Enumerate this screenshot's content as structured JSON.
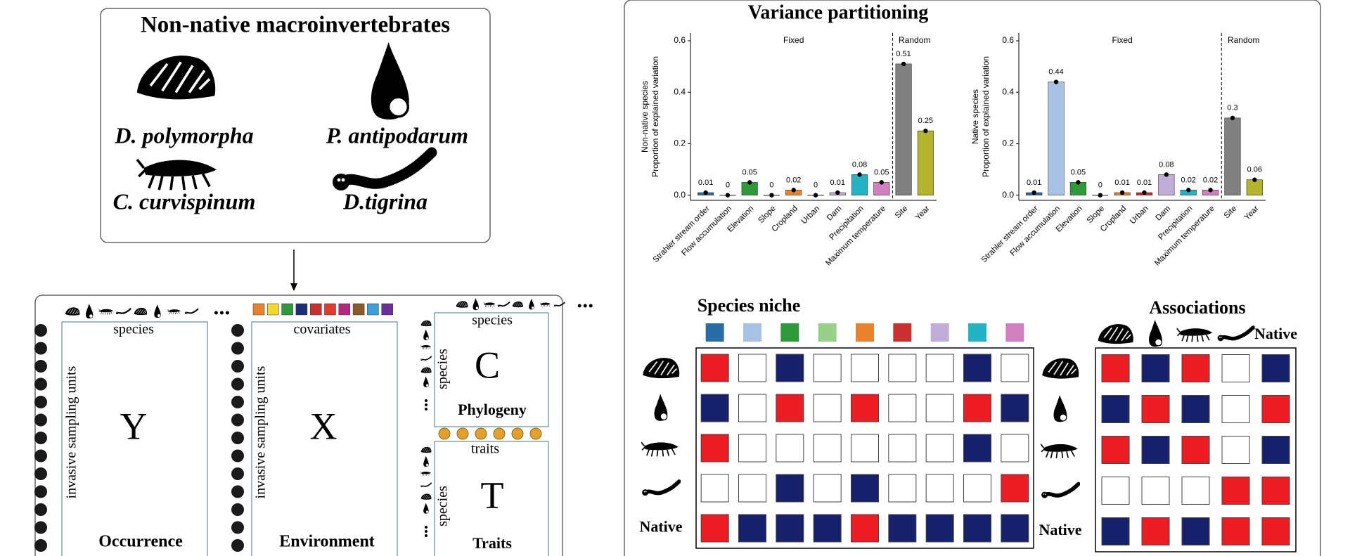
{
  "left_panel": {
    "title": "Non-native macroinvertebrates",
    "species": [
      "D. polymorpha",
      "P. antipodarum",
      "C. curvispinum",
      "D.tigrina"
    ]
  },
  "matrices": {
    "occurrence": {
      "top": "species",
      "side": "invasive sampling units",
      "symbol": "Y",
      "name": "Occurrence"
    },
    "environment": {
      "top": "covariates",
      "side": "invasive sampling units",
      "symbol": "X",
      "name": "Environment",
      "colors": [
        "#e9822d",
        "#f2d82a",
        "#2e9a3c",
        "#1b2f7a",
        "#c9302f",
        "#e33c2f",
        "#b3287e",
        "#8a5a2b",
        "#3aa0d8",
        "#6a2f9a"
      ]
    },
    "phylogeny": {
      "top": "species",
      "side": "species",
      "symbol": "C",
      "name": "Phylogeny"
    },
    "traits": {
      "top": "traits",
      "side": "species",
      "symbol": "T",
      "name": "Traits"
    }
  },
  "title": "Variance partitioning",
  "chart_data": [
    {
      "type": "bar",
      "ylabel": [
        "Non-native species",
        "Proportion of explained variation"
      ],
      "groups": [
        "Fixed",
        "Random"
      ],
      "categories": [
        "Strahler stream order",
        "Flow accumulation",
        "Elevation",
        "Slope",
        "Cropland",
        "Urban",
        "Dam",
        "Precipitation",
        "Maximum temperature",
        "Site",
        "Year"
      ],
      "values": [
        0.01,
        0,
        0.05,
        0,
        0.02,
        0,
        0.01,
        0.08,
        0.05,
        0.51,
        0.25
      ],
      "colors": [
        "#2a6ca3",
        "#a7c1e4",
        "#2e9a3c",
        "#98d08a",
        "#e9822d",
        "#c9302f",
        "#bfaed8",
        "#24b3c4",
        "#d27fc0",
        "#808080",
        "#b5b32e"
      ],
      "ylim": [
        -0.02,
        0.63
      ],
      "yticks": [
        {
          "value": 0,
          "label": "0.0"
        },
        0.2,
        0.4,
        0.6
      ]
    },
    {
      "type": "bar",
      "ylabel": [
        "Native species",
        "Proportion of explained variation"
      ],
      "groups": [
        "Fixed",
        "Random"
      ],
      "categories": [
        "Strahler stream order",
        "Flow accumulation",
        "Elevation",
        "Slope",
        "Cropland",
        "Urban",
        "Dam",
        "Precipitation",
        "Maximum temperature",
        "Site",
        "Year"
      ],
      "values": [
        0.01,
        0.44,
        0.05,
        0,
        0.01,
        0.01,
        0.08,
        0.02,
        0.02,
        0.3,
        0.06
      ],
      "colors": [
        "#2a6ca3",
        "#a7c1e4",
        "#2e9a3c",
        "#98d08a",
        "#e9822d",
        "#c9302f",
        "#bfaed8",
        "#24b3c4",
        "#d27fc0",
        "#808080",
        "#b5b32e"
      ],
      "ylim": [
        -0.02,
        0.63
      ],
      "yticks": [
        {
          "value": 0,
          "label": "0.0"
        },
        0.2,
        0.4,
        0.6
      ]
    }
  ],
  "niche": {
    "title": "Species niche",
    "colors": [
      "#2a6ca3",
      "#a7c1e4",
      "#2e9a3c",
      "#98d08a",
      "#e9822d",
      "#c9302f",
      "#bfaed8",
      "#24b3c4",
      "#d27fc0"
    ],
    "row_label": "Native",
    "positive_color": "#ec1c24",
    "negative_color": "#17206b",
    "values": [
      [
        1,
        0,
        -1,
        0,
        0,
        0,
        0,
        -1,
        0
      ],
      [
        -1,
        0,
        1,
        0,
        1,
        0,
        0,
        1,
        -1
      ],
      [
        1,
        0,
        0,
        0,
        0,
        0,
        0,
        -1,
        0
      ],
      [
        0,
        0,
        -1,
        0,
        -1,
        0,
        0,
        0,
        1
      ],
      [
        1,
        -1,
        -1,
        -1,
        1,
        -1,
        -1,
        -1,
        -1
      ]
    ]
  },
  "associations": {
    "title": "Associations",
    "row_label": "Native",
    "column_label": "Native",
    "positive_color": "#ec1c24",
    "negative_color": "#17206b",
    "values": [
      [
        1,
        -1,
        1,
        0,
        -1
      ],
      [
        -1,
        1,
        -1,
        0,
        1
      ],
      [
        1,
        -1,
        1,
        0,
        -1
      ],
      [
        0,
        0,
        0,
        1,
        1
      ],
      [
        -1,
        1,
        -1,
        1,
        1
      ]
    ]
  }
}
